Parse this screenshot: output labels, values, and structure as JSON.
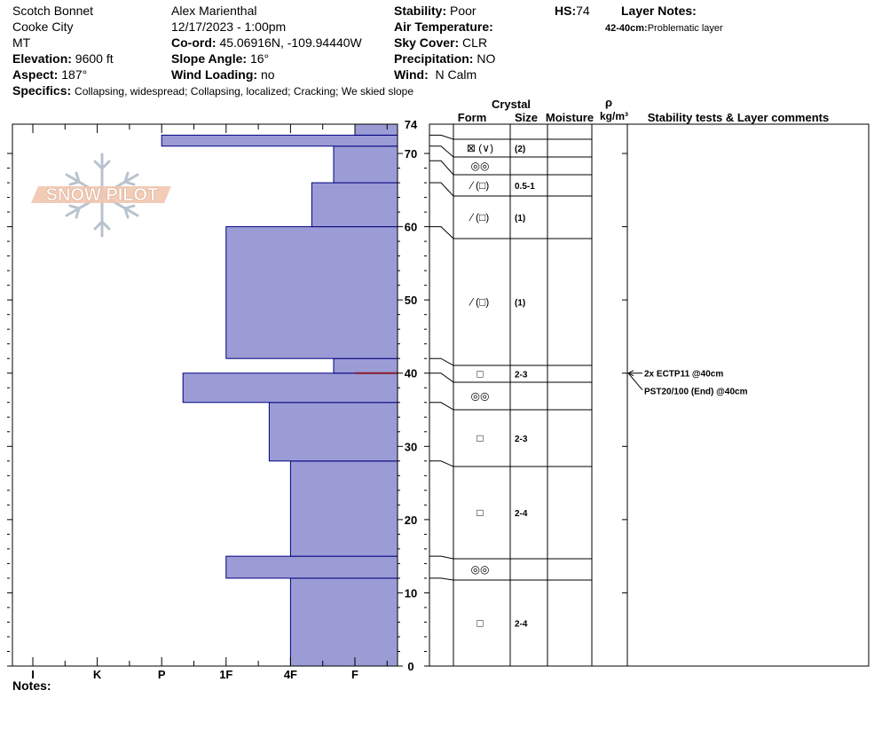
{
  "header": {
    "location": "Scotch Bonnet",
    "area": "Cooke City",
    "state": "MT",
    "elevation_label": "Elevation:",
    "elevation": "9600 ft",
    "aspect_label": "Aspect:",
    "aspect": "187°",
    "observer": "Alex Marienthal",
    "datetime": "12/17/2023 - 1:00pm",
    "coord_label": "Co-ord:",
    "coord": "45.06916N, -109.94440W",
    "slope_label": "Slope Angle:",
    "slope": "16°",
    "wind_loading_label": "Wind Loading:",
    "wind_loading": "no",
    "stability_label": "Stability:",
    "stability": "Poor",
    "air_temp_label": "Air Temperature:",
    "air_temp": "",
    "sky_label": "Sky Cover:",
    "sky": "CLR",
    "precip_label": "Precipitation:",
    "precip": "NO",
    "wind_label": "Wind:",
    "wind": "N Calm",
    "hs_label": "HS:",
    "hs": "74",
    "layer_notes_label": "Layer Notes:",
    "layer_note_range": "42-40cm:",
    "layer_note_text": "Problematic layer",
    "specifics_label": "Specifics:",
    "specifics": "Collapsing, widespread; Collapsing, localized; Cracking; We skied slope"
  },
  "table_headers": {
    "crystal": "Crystal",
    "form": "Form",
    "size": "Size",
    "moisture": "Moisture",
    "rho": "ρ",
    "density_unit": "kg/m³",
    "stability_col": "Stability tests & Layer comments"
  },
  "logo_text": "SNOW PILOT",
  "notes_label": "Notes:",
  "colors": {
    "hardness_fill": "#9b9bd6",
    "hardness_stroke": "#00007f",
    "weak_layer": "#8b1a2b"
  },
  "chart_data": {
    "type": "bar",
    "title": "",
    "ylabel": "",
    "ylim": [
      0,
      74
    ],
    "y_ticks": [
      0,
      10,
      20,
      30,
      40,
      50,
      60,
      70,
      74
    ],
    "x_categories": [
      "I",
      "K",
      "P",
      "1F",
      "4F",
      "F"
    ],
    "hardness_layers": [
      {
        "bottom": 0,
        "top": 12,
        "hardness": "4F"
      },
      {
        "bottom": 12,
        "top": 15,
        "hardness": "1F"
      },
      {
        "bottom": 15,
        "top": 28,
        "hardness": "4F"
      },
      {
        "bottom": 28,
        "top": 36,
        "hardness": "4F-"
      },
      {
        "bottom": 36,
        "top": 40,
        "hardness": "P+"
      },
      {
        "bottom": 40,
        "top": 42,
        "hardness": "F-"
      },
      {
        "bottom": 42,
        "top": 60,
        "hardness": "1F"
      },
      {
        "bottom": 60,
        "top": 66,
        "hardness": "4F+"
      },
      {
        "bottom": 66,
        "top": 71,
        "hardness": "F-"
      },
      {
        "bottom": 71,
        "top": 72.5,
        "hardness": "P"
      },
      {
        "bottom": 72.5,
        "top": 74,
        "hardness": "F"
      }
    ],
    "weak_layer_depth": 40,
    "layers": [
      {
        "bottom": 72.5,
        "top": 74,
        "form": "",
        "size": ""
      },
      {
        "bottom": 71,
        "top": 72.5,
        "form": "⊠ (∨)",
        "size": "(2)"
      },
      {
        "bottom": 69,
        "top": 71,
        "form": "◎◎",
        "size": ""
      },
      {
        "bottom": 66,
        "top": 69,
        "form": "⁄ (□)",
        "size": "0.5-1"
      },
      {
        "bottom": 60,
        "top": 66,
        "form": "⁄ (□)",
        "size": "(1)"
      },
      {
        "bottom": 42,
        "top": 60,
        "form": "⁄ (□)",
        "size": "(1)"
      },
      {
        "bottom": 40,
        "top": 42,
        "form": "□",
        "size": "2-3"
      },
      {
        "bottom": 36,
        "top": 40,
        "form": "◎◎",
        "size": ""
      },
      {
        "bottom": 28,
        "top": 36,
        "form": "□",
        "size": "2-3"
      },
      {
        "bottom": 15,
        "top": 28,
        "form": "□",
        "size": "2-4"
      },
      {
        "bottom": 12,
        "top": 15,
        "form": "◎◎",
        "size": ""
      },
      {
        "bottom": 0,
        "top": 12,
        "form": "□",
        "size": "2-4"
      }
    ],
    "stability_tests": [
      {
        "text": "2x ECTP11 @40cm",
        "depth": 40
      },
      {
        "text": "PST20/100 (End) @40cm",
        "depth": 40
      }
    ]
  }
}
